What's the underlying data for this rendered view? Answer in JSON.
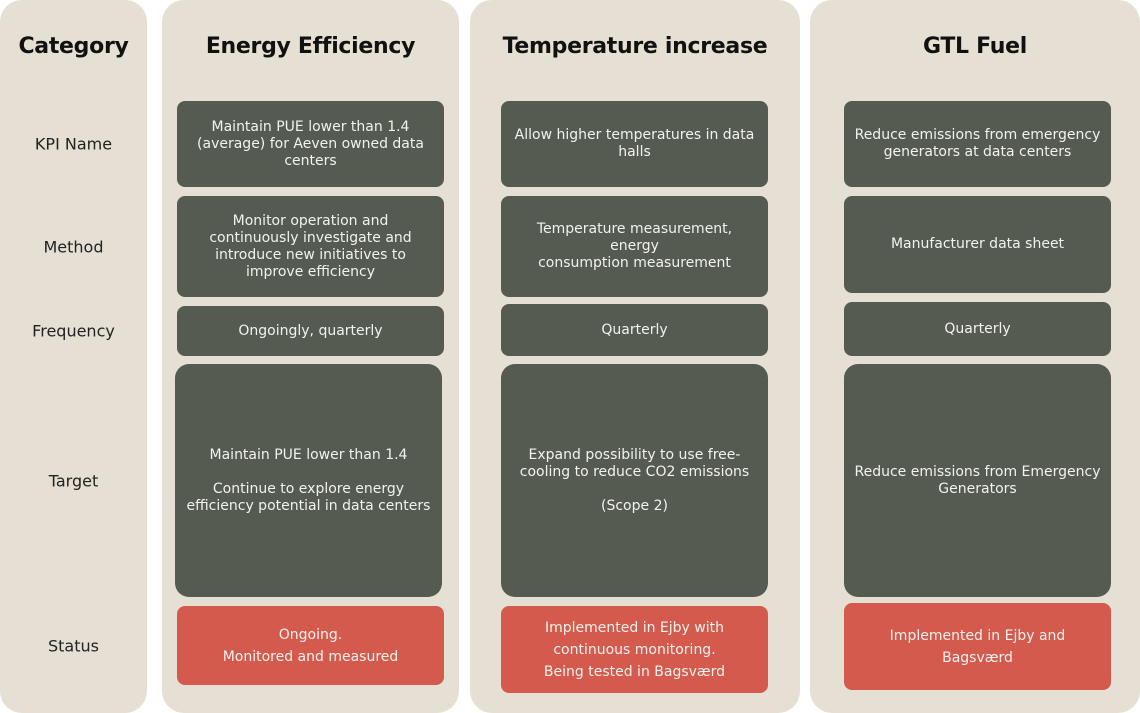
{
  "category_column": {
    "header": "Category",
    "rows": {
      "kpi": "KPI Name",
      "method": "Method",
      "frequency": "Frequency",
      "target": "Target",
      "status": "Status"
    }
  },
  "columns": [
    {
      "header": "Energy Efficiency",
      "kpi": "Maintain PUE lower than 1.4\n(average) for Aeven owned data\ncenters",
      "method": "Monitor operation and\ncontinuously investigate and\nintroduce new initiatives to\nimprove efficiency",
      "frequency": "Ongoingly, quarterly",
      "target": "Maintain PUE lower than 1.4\n\nContinue to explore energy\nefficiency potential in data centers",
      "status": "Ongoing.\nMonitored and measured"
    },
    {
      "header": "Temperature increase",
      "kpi": "Allow higher temperatures in data\nhalls",
      "method": "Temperature measurement, energy\nconsumption measurement",
      "frequency": "Quarterly",
      "target": "Expand possibility to use free-\ncooling to reduce CO2 emissions\n\n(Scope 2)",
      "status": "Implemented in Ejby with\ncontinuous monitoring.\nBeing tested in Bagsværd"
    },
    {
      "header": "GTL Fuel",
      "kpi": "Reduce emissions from emergency\ngenerators at data centers",
      "method": "Manufacturer data sheet",
      "frequency": "Quarterly",
      "target": "Reduce emissions from Emergency\nGenerators",
      "status": "Implemented in Ejby and\nBagsværd"
    }
  ],
  "colors": {
    "panel": "#e5e0d3",
    "cell": "#555b50",
    "status": "#d35a4d"
  }
}
